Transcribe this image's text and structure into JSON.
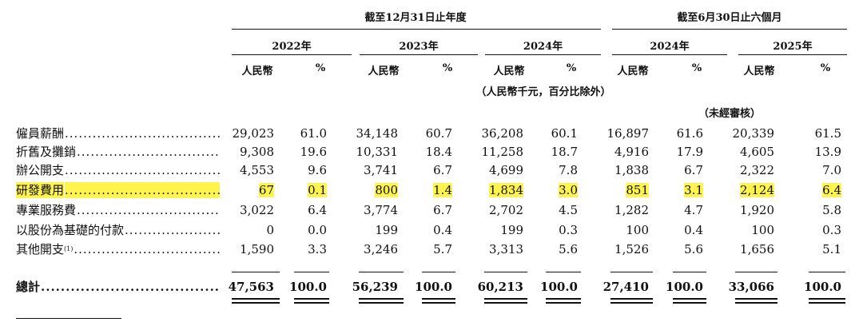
{
  "groups": [
    {
      "label": "截至12月31日止年度"
    },
    {
      "label": "截至6月30日止六個月"
    }
  ],
  "years": [
    "2022年",
    "2023年",
    "2024年",
    "2024年",
    "2025年"
  ],
  "col_headers": {
    "rmb": "人民幣",
    "pct": "%"
  },
  "unit_note": "（人民幣千元，百分比除外）",
  "unaudited_note": "（未經審核）",
  "leader_dots": ".........................................",
  "rows": [
    {
      "label": "僱員薪酬",
      "values": [
        "29,023",
        "61.0",
        "34,148",
        "60.7",
        "36,208",
        "60.1",
        "16,897",
        "61.6",
        "20,339",
        "61.5"
      ],
      "highlight": false
    },
    {
      "label": "折舊及攤銷",
      "values": [
        "9,308",
        "19.6",
        "10,331",
        "18.4",
        "11,258",
        "18.7",
        "4,916",
        "17.9",
        "4,605",
        "13.9"
      ],
      "highlight": false
    },
    {
      "label": "辦公開支",
      "values": [
        "4,553",
        "9.6",
        "3,741",
        "6.7",
        "4,699",
        "7.8",
        "1,838",
        "6.7",
        "2,322",
        "7.0"
      ],
      "highlight": false
    },
    {
      "label": "研發費用",
      "values": [
        "67",
        "0.1",
        "800",
        "1.4",
        "1,834",
        "3.0",
        "851",
        "3.1",
        "2,124",
        "6.4"
      ],
      "highlight": true
    },
    {
      "label": "專業服務費",
      "values": [
        "3,022",
        "6.4",
        "3,774",
        "6.7",
        "2,702",
        "4.5",
        "1,282",
        "4.7",
        "1,920",
        "5.8"
      ],
      "highlight": false
    },
    {
      "label": "以股份為基礎的付款",
      "values": [
        "0",
        "0.0",
        "199",
        "0.4",
        "199",
        "0.3",
        "100",
        "0.4",
        "100",
        "0.3"
      ],
      "highlight": false
    },
    {
      "label": "其他開支",
      "footnote": "(1)",
      "values": [
        "1,590",
        "3.3",
        "3,246",
        "5.7",
        "3,313",
        "5.6",
        "1,526",
        "5.6",
        "1,656",
        "5.1"
      ],
      "highlight": false
    }
  ],
  "total": {
    "label": "總計",
    "values": [
      "47,563",
      "100.0",
      "56,239",
      "100.0",
      "60,213",
      "100.0",
      "27,410",
      "100.0",
      "33,066",
      "100.0"
    ]
  }
}
